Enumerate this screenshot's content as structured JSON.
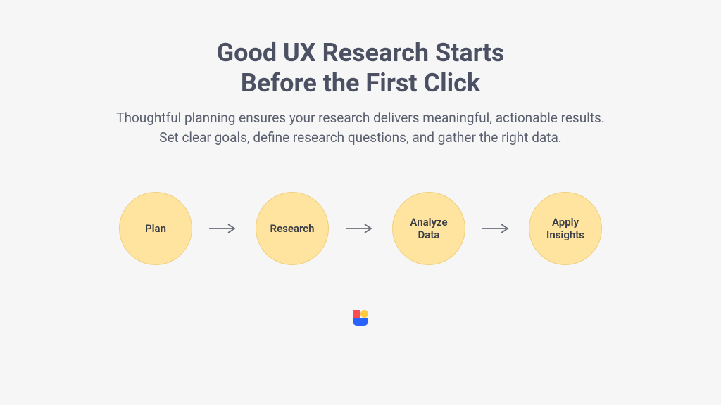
{
  "background_color": "#f6f6f7",
  "title": {
    "line1": "Good UX Research Starts",
    "line2": "Before the First Click",
    "color": "#4b5162",
    "fontsize": 36
  },
  "subtitle": {
    "text": "Thoughtful planning ensures your research delivers meaningful, actionable results. Set clear goals, define research questions, and gather the right data.",
    "color": "#5a5f6d",
    "fontsize": 19
  },
  "flow": {
    "circle_diameter": 104,
    "circle_fill": "#ffe49f",
    "circle_border": "#f0cf7a",
    "circle_border_width": 1,
    "label_color": "#3a3d45",
    "label_fontsize": 15,
    "arrow_color": "#6a6e78",
    "arrow_length": 36,
    "arrow_stroke_width": 1.8,
    "steps": [
      {
        "label": "Plan"
      },
      {
        "label": "Research"
      },
      {
        "label": "Analyze Data"
      },
      {
        "label": "Apply Insights"
      }
    ]
  },
  "logo": {
    "size": 30,
    "color_red": "#ff4b55",
    "color_yellow": "#ffcb3c",
    "color_blue": "#2962ff"
  }
}
